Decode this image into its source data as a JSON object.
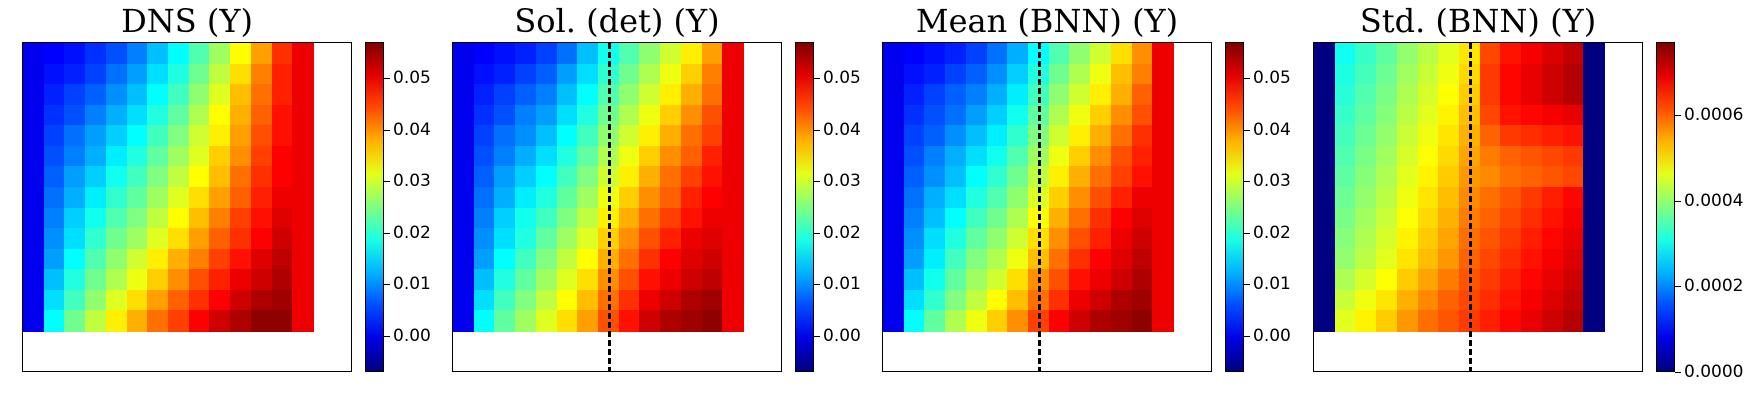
{
  "chart_data": [
    {
      "type": "heatmap",
      "title": "DNS (Y)",
      "colormap": "jet",
      "colorbar": {
        "min": -0.007,
        "max": 0.057,
        "ticks": [
          "0.00",
          "0.01",
          "0.02",
          "0.03",
          "0.04",
          "0.05"
        ],
        "tick_values": [
          0.0,
          0.01,
          0.02,
          0.03,
          0.04,
          0.05
        ]
      },
      "dashed_divider": false,
      "rows": 14,
      "cols": 14,
      "values": [
        [
          0.0,
          0.001,
          0.002,
          0.004,
          0.006,
          0.009,
          0.013,
          0.017,
          0.022,
          0.027,
          0.033,
          0.039,
          0.046,
          0.05
        ],
        [
          0.0,
          0.002,
          0.003,
          0.005,
          0.008,
          0.011,
          0.015,
          0.019,
          0.024,
          0.029,
          0.035,
          0.041,
          0.047,
          0.05
        ],
        [
          0.0,
          0.003,
          0.005,
          0.007,
          0.01,
          0.013,
          0.017,
          0.021,
          0.026,
          0.031,
          0.037,
          0.042,
          0.047,
          0.05
        ],
        [
          0.0,
          0.004,
          0.006,
          0.009,
          0.012,
          0.015,
          0.019,
          0.023,
          0.028,
          0.033,
          0.038,
          0.043,
          0.048,
          0.05
        ],
        [
          0.0,
          0.005,
          0.008,
          0.011,
          0.014,
          0.017,
          0.021,
          0.025,
          0.03,
          0.034,
          0.039,
          0.044,
          0.048,
          0.05
        ],
        [
          0.0,
          0.006,
          0.009,
          0.012,
          0.016,
          0.019,
          0.023,
          0.027,
          0.031,
          0.036,
          0.04,
          0.045,
          0.049,
          0.05
        ],
        [
          0.0,
          0.007,
          0.011,
          0.014,
          0.018,
          0.021,
          0.025,
          0.029,
          0.033,
          0.037,
          0.042,
          0.046,
          0.049,
          0.05
        ],
        [
          0.0,
          0.008,
          0.012,
          0.016,
          0.02,
          0.023,
          0.027,
          0.031,
          0.035,
          0.039,
          0.043,
          0.047,
          0.05,
          0.05
        ],
        [
          0.0,
          0.009,
          0.014,
          0.018,
          0.022,
          0.025,
          0.029,
          0.033,
          0.037,
          0.041,
          0.045,
          0.048,
          0.051,
          0.05
        ],
        [
          0.0,
          0.01,
          0.015,
          0.02,
          0.024,
          0.027,
          0.031,
          0.035,
          0.039,
          0.043,
          0.046,
          0.049,
          0.052,
          0.05
        ],
        [
          0.0,
          0.011,
          0.017,
          0.022,
          0.026,
          0.03,
          0.034,
          0.038,
          0.041,
          0.045,
          0.048,
          0.051,
          0.053,
          0.05
        ],
        [
          0.0,
          0.013,
          0.019,
          0.024,
          0.028,
          0.032,
          0.036,
          0.04,
          0.044,
          0.047,
          0.05,
          0.052,
          0.054,
          0.05
        ],
        [
          0.0,
          0.015,
          0.021,
          0.026,
          0.031,
          0.035,
          0.039,
          0.043,
          0.046,
          0.049,
          0.052,
          0.054,
          0.055,
          0.05
        ],
        [
          0.0,
          0.017,
          0.024,
          0.029,
          0.034,
          0.038,
          0.042,
          0.045,
          0.049,
          0.052,
          0.054,
          0.056,
          0.056,
          0.05
        ]
      ]
    },
    {
      "type": "heatmap",
      "title": "Sol. (det) (Y)",
      "colormap": "jet",
      "colorbar": {
        "min": -0.007,
        "max": 0.057,
        "ticks": [
          "0.00",
          "0.01",
          "0.02",
          "0.03",
          "0.04",
          "0.05"
        ],
        "tick_values": [
          0.0,
          0.01,
          0.02,
          0.03,
          0.04,
          0.05
        ]
      },
      "dashed_divider": true,
      "rows": 14,
      "cols": 14,
      "values": [
        [
          0.0,
          0.001,
          0.002,
          0.003,
          0.005,
          0.008,
          0.013,
          0.018,
          0.022,
          0.026,
          0.03,
          0.034,
          0.039,
          0.05
        ],
        [
          0.0,
          0.002,
          0.003,
          0.005,
          0.007,
          0.011,
          0.015,
          0.02,
          0.024,
          0.028,
          0.032,
          0.036,
          0.041,
          0.05
        ],
        [
          0.0,
          0.003,
          0.005,
          0.007,
          0.009,
          0.013,
          0.017,
          0.022,
          0.026,
          0.03,
          0.034,
          0.038,
          0.042,
          0.05
        ],
        [
          0.0,
          0.004,
          0.006,
          0.009,
          0.011,
          0.015,
          0.019,
          0.024,
          0.028,
          0.032,
          0.036,
          0.04,
          0.044,
          0.05
        ],
        [
          0.0,
          0.005,
          0.008,
          0.01,
          0.013,
          0.017,
          0.021,
          0.026,
          0.03,
          0.034,
          0.038,
          0.042,
          0.045,
          0.05
        ],
        [
          0.0,
          0.006,
          0.009,
          0.012,
          0.015,
          0.019,
          0.023,
          0.028,
          0.032,
          0.036,
          0.04,
          0.043,
          0.047,
          0.05
        ],
        [
          0.0,
          0.007,
          0.011,
          0.014,
          0.017,
          0.021,
          0.025,
          0.03,
          0.034,
          0.038,
          0.042,
          0.045,
          0.048,
          0.05
        ],
        [
          0.0,
          0.008,
          0.012,
          0.016,
          0.019,
          0.023,
          0.027,
          0.032,
          0.036,
          0.04,
          0.043,
          0.047,
          0.049,
          0.05
        ],
        [
          0.0,
          0.009,
          0.014,
          0.018,
          0.021,
          0.025,
          0.029,
          0.034,
          0.038,
          0.042,
          0.045,
          0.048,
          0.05,
          0.05
        ],
        [
          0.0,
          0.01,
          0.015,
          0.019,
          0.023,
          0.027,
          0.031,
          0.036,
          0.04,
          0.044,
          0.047,
          0.05,
          0.051,
          0.05
        ],
        [
          0.0,
          0.011,
          0.017,
          0.021,
          0.025,
          0.029,
          0.033,
          0.038,
          0.042,
          0.046,
          0.049,
          0.051,
          0.052,
          0.05
        ],
        [
          0.0,
          0.013,
          0.019,
          0.023,
          0.027,
          0.031,
          0.035,
          0.04,
          0.044,
          0.048,
          0.05,
          0.052,
          0.053,
          0.05
        ],
        [
          0.0,
          0.015,
          0.021,
          0.025,
          0.029,
          0.033,
          0.037,
          0.042,
          0.046,
          0.05,
          0.052,
          0.054,
          0.055,
          0.05
        ],
        [
          0.0,
          0.017,
          0.023,
          0.027,
          0.031,
          0.035,
          0.039,
          0.044,
          0.048,
          0.052,
          0.054,
          0.055,
          0.056,
          0.05
        ]
      ]
    },
    {
      "type": "heatmap",
      "title": "Mean (BNN) (Y)",
      "colormap": "jet",
      "colorbar": {
        "min": -0.007,
        "max": 0.057,
        "ticks": [
          "0.00",
          "0.01",
          "0.02",
          "0.03",
          "0.04",
          "0.05"
        ],
        "tick_values": [
          0.0,
          0.01,
          0.02,
          0.03,
          0.04,
          0.05
        ]
      },
      "dashed_divider": true,
      "rows": 14,
      "cols": 14,
      "values": [
        [
          0.0,
          0.001,
          0.002,
          0.003,
          0.005,
          0.008,
          0.012,
          0.017,
          0.022,
          0.026,
          0.03,
          0.035,
          0.04,
          0.05
        ],
        [
          0.0,
          0.002,
          0.003,
          0.005,
          0.007,
          0.01,
          0.014,
          0.019,
          0.024,
          0.028,
          0.032,
          0.037,
          0.041,
          0.05
        ],
        [
          0.0,
          0.003,
          0.005,
          0.007,
          0.009,
          0.012,
          0.016,
          0.021,
          0.026,
          0.03,
          0.034,
          0.038,
          0.043,
          0.05
        ],
        [
          0.0,
          0.004,
          0.006,
          0.008,
          0.011,
          0.014,
          0.018,
          0.023,
          0.028,
          0.032,
          0.036,
          0.04,
          0.044,
          0.05
        ],
        [
          0.0,
          0.005,
          0.007,
          0.01,
          0.013,
          0.016,
          0.02,
          0.025,
          0.03,
          0.034,
          0.038,
          0.042,
          0.046,
          0.05
        ],
        [
          0.0,
          0.006,
          0.009,
          0.012,
          0.015,
          0.018,
          0.022,
          0.027,
          0.032,
          0.036,
          0.04,
          0.044,
          0.047,
          0.05
        ],
        [
          0.0,
          0.007,
          0.01,
          0.013,
          0.017,
          0.02,
          0.024,
          0.029,
          0.034,
          0.038,
          0.042,
          0.045,
          0.048,
          0.05
        ],
        [
          0.0,
          0.008,
          0.012,
          0.015,
          0.019,
          0.022,
          0.026,
          0.031,
          0.036,
          0.04,
          0.044,
          0.047,
          0.05,
          0.05
        ],
        [
          0.0,
          0.009,
          0.013,
          0.017,
          0.021,
          0.024,
          0.028,
          0.033,
          0.038,
          0.042,
          0.046,
          0.049,
          0.051,
          0.05
        ],
        [
          0.0,
          0.01,
          0.015,
          0.019,
          0.023,
          0.026,
          0.03,
          0.035,
          0.04,
          0.044,
          0.047,
          0.05,
          0.052,
          0.05
        ],
        [
          0.0,
          0.011,
          0.016,
          0.021,
          0.025,
          0.028,
          0.032,
          0.037,
          0.042,
          0.046,
          0.049,
          0.051,
          0.053,
          0.05
        ],
        [
          0.0,
          0.013,
          0.018,
          0.023,
          0.027,
          0.03,
          0.035,
          0.04,
          0.044,
          0.048,
          0.05,
          0.052,
          0.054,
          0.05
        ],
        [
          0.0,
          0.015,
          0.02,
          0.025,
          0.029,
          0.033,
          0.037,
          0.042,
          0.046,
          0.05,
          0.052,
          0.054,
          0.055,
          0.05
        ],
        [
          0.0,
          0.017,
          0.023,
          0.028,
          0.032,
          0.036,
          0.04,
          0.045,
          0.049,
          0.052,
          0.054,
          0.055,
          0.056,
          0.05
        ]
      ]
    },
    {
      "type": "heatmap",
      "title": "Std. (BNN) (Y)",
      "colormap": "jet",
      "colorbar": {
        "min": 0.0,
        "max": 0.00077,
        "ticks": [
          "0.0000",
          "0.0002",
          "0.0004",
          "0.0006"
        ],
        "tick_values": [
          0.0,
          0.0002,
          0.0004,
          0.0006
        ]
      },
      "dashed_divider": true,
      "rows": 14,
      "cols": 14,
      "values": [
        [
          0.0,
          0.0003,
          0.00033,
          0.00036,
          0.0004,
          0.00043,
          0.00046,
          0.0005,
          0.00062,
          0.00066,
          0.00068,
          0.0007,
          0.00072,
          0.0
        ],
        [
          0.0,
          0.00031,
          0.00034,
          0.00037,
          0.00041,
          0.00044,
          0.00047,
          0.00051,
          0.00063,
          0.00067,
          0.00069,
          0.00071,
          0.00073,
          0.0
        ],
        [
          0.0,
          0.00032,
          0.00035,
          0.00038,
          0.00042,
          0.00045,
          0.00048,
          0.00052,
          0.00063,
          0.00067,
          0.00069,
          0.00071,
          0.00073,
          0.0
        ],
        [
          0.0,
          0.00033,
          0.00036,
          0.00039,
          0.00043,
          0.00046,
          0.00049,
          0.00053,
          0.00062,
          0.00066,
          0.00067,
          0.00068,
          0.00069,
          0.0
        ],
        [
          0.0,
          0.00034,
          0.00037,
          0.0004,
          0.00044,
          0.00047,
          0.0005,
          0.00054,
          0.0006,
          0.00063,
          0.00064,
          0.00065,
          0.00066,
          0.0
        ],
        [
          0.0,
          0.00035,
          0.00038,
          0.00041,
          0.00045,
          0.00048,
          0.00051,
          0.00055,
          0.00058,
          0.0006,
          0.00061,
          0.00062,
          0.00063,
          0.0
        ],
        [
          0.0,
          0.00036,
          0.00039,
          0.00042,
          0.00046,
          0.00049,
          0.00052,
          0.00056,
          0.00057,
          0.00059,
          0.0006,
          0.00061,
          0.00062,
          0.0
        ],
        [
          0.0,
          0.00037,
          0.0004,
          0.00043,
          0.00047,
          0.0005,
          0.00053,
          0.00057,
          0.00059,
          0.00061,
          0.00063,
          0.00065,
          0.00067,
          0.0
        ],
        [
          0.0,
          0.00038,
          0.00041,
          0.00044,
          0.00048,
          0.00051,
          0.00054,
          0.00058,
          0.0006,
          0.00062,
          0.00064,
          0.00066,
          0.00068,
          0.0
        ],
        [
          0.0,
          0.00039,
          0.00042,
          0.00045,
          0.00049,
          0.00052,
          0.00055,
          0.00059,
          0.00061,
          0.00063,
          0.00065,
          0.00067,
          0.00069,
          0.0
        ],
        [
          0.0,
          0.0004,
          0.00043,
          0.00046,
          0.0005,
          0.00053,
          0.00056,
          0.0006,
          0.00062,
          0.00064,
          0.00066,
          0.00068,
          0.0007,
          0.0
        ],
        [
          0.0,
          0.00042,
          0.00045,
          0.00048,
          0.00052,
          0.00055,
          0.00058,
          0.00061,
          0.00063,
          0.00065,
          0.00067,
          0.00069,
          0.00071,
          0.0
        ],
        [
          0.0,
          0.00044,
          0.00047,
          0.0005,
          0.00054,
          0.00057,
          0.0006,
          0.00062,
          0.00064,
          0.00066,
          0.00068,
          0.0007,
          0.00072,
          0.0
        ],
        [
          0.0,
          0.00046,
          0.00049,
          0.00052,
          0.00056,
          0.00059,
          0.00061,
          0.00063,
          0.00065,
          0.00067,
          0.00069,
          0.00071,
          0.00073,
          0.0
        ]
      ]
    }
  ]
}
